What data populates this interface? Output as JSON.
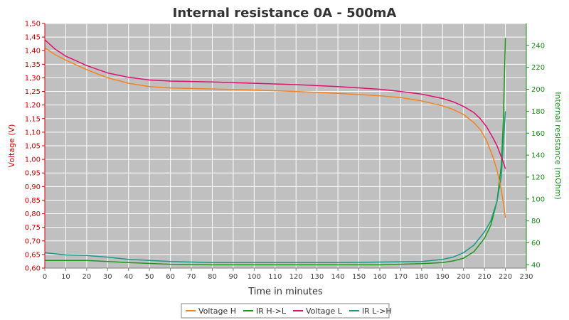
{
  "chart_data": {
    "type": "line",
    "title": "Internal resistance  0A - 500mA",
    "xlabel": "Time in minutes",
    "ylabel": "Voltage (V)",
    "y2label": "Internal resistance (mOhm)",
    "xlim": [
      0,
      230
    ],
    "ylim": [
      0.6,
      1.5
    ],
    "y2lim": [
      37,
      260
    ],
    "x_ticks": [
      0,
      10,
      20,
      30,
      40,
      50,
      60,
      70,
      80,
      90,
      100,
      110,
      120,
      130,
      140,
      150,
      160,
      170,
      180,
      190,
      200,
      210,
      220,
      230
    ],
    "y_ticks": [
      0.6,
      0.65,
      0.7,
      0.75,
      0.8,
      0.85,
      0.9,
      0.95,
      1.0,
      1.05,
      1.1,
      1.15,
      1.2,
      1.25,
      1.3,
      1.35,
      1.4,
      1.45,
      1.5
    ],
    "y2_ticks": [
      40,
      60,
      80,
      100,
      120,
      140,
      160,
      180,
      200,
      220,
      240
    ],
    "grid": true,
    "legend": "bottom",
    "series": [
      {
        "name": "Voltage H",
        "axis": "left",
        "color": "#f5821f",
        "x": [
          0,
          5,
          10,
          20,
          30,
          40,
          50,
          60,
          80,
          100,
          120,
          140,
          160,
          170,
          180,
          190,
          195,
          200,
          205,
          208,
          211,
          214,
          216,
          218,
          219,
          220
        ],
        "y": [
          1.41,
          1.385,
          1.365,
          1.33,
          1.3,
          1.28,
          1.268,
          1.263,
          1.259,
          1.255,
          1.25,
          1.243,
          1.234,
          1.227,
          1.215,
          1.197,
          1.184,
          1.165,
          1.135,
          1.11,
          1.07,
          1.01,
          0.96,
          0.89,
          0.84,
          0.785
        ]
      },
      {
        "name": "IR H->L",
        "axis": "right",
        "color": "#1a9a1a",
        "x": [
          0,
          10,
          20,
          30,
          40,
          60,
          80,
          100,
          120,
          140,
          160,
          180,
          190,
          195,
          200,
          205,
          210,
          213,
          216,
          218,
          219,
          220
        ],
        "y": [
          44,
          44,
          44,
          43,
          42,
          40.5,
          40,
          40,
          40,
          40,
          40,
          41,
          42,
          43.5,
          46,
          52,
          64,
          76,
          98,
          130,
          170,
          247
        ]
      },
      {
        "name": "Voltage L",
        "axis": "left",
        "color": "#e0106e",
        "x": [
          0,
          5,
          10,
          20,
          30,
          40,
          50,
          60,
          80,
          100,
          120,
          140,
          160,
          170,
          180,
          190,
          195,
          200,
          205,
          208,
          211,
          214,
          216,
          218,
          219,
          220
        ],
        "y": [
          1.44,
          1.405,
          1.38,
          1.345,
          1.318,
          1.302,
          1.292,
          1.288,
          1.285,
          1.28,
          1.275,
          1.268,
          1.258,
          1.25,
          1.24,
          1.224,
          1.212,
          1.195,
          1.172,
          1.15,
          1.12,
          1.08,
          1.05,
          1.01,
          0.99,
          0.965
        ]
      },
      {
        "name": "IR L->H",
        "axis": "right",
        "color": "#1a9a85",
        "x": [
          0,
          10,
          20,
          30,
          40,
          60,
          80,
          100,
          120,
          140,
          160,
          180,
          190,
          195,
          200,
          205,
          210,
          213,
          216,
          218,
          219,
          220
        ],
        "y": [
          51,
          49,
          48.5,
          47,
          45,
          43,
          42,
          42,
          42,
          42,
          42.5,
          43,
          45,
          47,
          51,
          58,
          70,
          80,
          98,
          120,
          150,
          180
        ]
      }
    ]
  }
}
